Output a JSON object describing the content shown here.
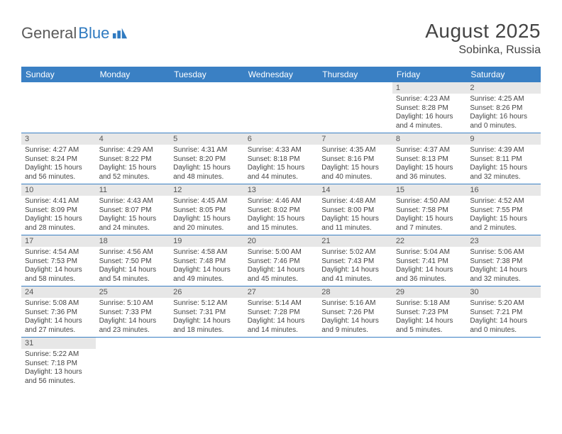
{
  "logo": {
    "part1": "General",
    "part2": "Blue"
  },
  "header": {
    "month_title": "August 2025",
    "location": "Sobinka, Russia"
  },
  "colors": {
    "header_bg": "#3a80c4",
    "header_text": "#ffffff",
    "daynum_bg": "#e7e7e7",
    "row_divider": "#3a80c4",
    "body_text": "#444444",
    "logo_gray": "#5a5a5a",
    "logo_blue": "#2f7ac0",
    "page_bg": "#ffffff"
  },
  "fonts": {
    "month_title_size": 28,
    "location_size": 16,
    "weekday_header_size": 12,
    "daynum_size": 11,
    "cell_body_size": 10
  },
  "type": "calendar",
  "weekdays": [
    "Sunday",
    "Monday",
    "Tuesday",
    "Wednesday",
    "Thursday",
    "Friday",
    "Saturday"
  ],
  "weeks": [
    [
      null,
      null,
      null,
      null,
      null,
      {
        "n": "1",
        "sr": "Sunrise: 4:23 AM",
        "ss": "Sunset: 8:28 PM",
        "dl1": "Daylight: 16 hours",
        "dl2": "and 4 minutes."
      },
      {
        "n": "2",
        "sr": "Sunrise: 4:25 AM",
        "ss": "Sunset: 8:26 PM",
        "dl1": "Daylight: 16 hours",
        "dl2": "and 0 minutes."
      }
    ],
    [
      {
        "n": "3",
        "sr": "Sunrise: 4:27 AM",
        "ss": "Sunset: 8:24 PM",
        "dl1": "Daylight: 15 hours",
        "dl2": "and 56 minutes."
      },
      {
        "n": "4",
        "sr": "Sunrise: 4:29 AM",
        "ss": "Sunset: 8:22 PM",
        "dl1": "Daylight: 15 hours",
        "dl2": "and 52 minutes."
      },
      {
        "n": "5",
        "sr": "Sunrise: 4:31 AM",
        "ss": "Sunset: 8:20 PM",
        "dl1": "Daylight: 15 hours",
        "dl2": "and 48 minutes."
      },
      {
        "n": "6",
        "sr": "Sunrise: 4:33 AM",
        "ss": "Sunset: 8:18 PM",
        "dl1": "Daylight: 15 hours",
        "dl2": "and 44 minutes."
      },
      {
        "n": "7",
        "sr": "Sunrise: 4:35 AM",
        "ss": "Sunset: 8:16 PM",
        "dl1": "Daylight: 15 hours",
        "dl2": "and 40 minutes."
      },
      {
        "n": "8",
        "sr": "Sunrise: 4:37 AM",
        "ss": "Sunset: 8:13 PM",
        "dl1": "Daylight: 15 hours",
        "dl2": "and 36 minutes."
      },
      {
        "n": "9",
        "sr": "Sunrise: 4:39 AM",
        "ss": "Sunset: 8:11 PM",
        "dl1": "Daylight: 15 hours",
        "dl2": "and 32 minutes."
      }
    ],
    [
      {
        "n": "10",
        "sr": "Sunrise: 4:41 AM",
        "ss": "Sunset: 8:09 PM",
        "dl1": "Daylight: 15 hours",
        "dl2": "and 28 minutes."
      },
      {
        "n": "11",
        "sr": "Sunrise: 4:43 AM",
        "ss": "Sunset: 8:07 PM",
        "dl1": "Daylight: 15 hours",
        "dl2": "and 24 minutes."
      },
      {
        "n": "12",
        "sr": "Sunrise: 4:45 AM",
        "ss": "Sunset: 8:05 PM",
        "dl1": "Daylight: 15 hours",
        "dl2": "and 20 minutes."
      },
      {
        "n": "13",
        "sr": "Sunrise: 4:46 AM",
        "ss": "Sunset: 8:02 PM",
        "dl1": "Daylight: 15 hours",
        "dl2": "and 15 minutes."
      },
      {
        "n": "14",
        "sr": "Sunrise: 4:48 AM",
        "ss": "Sunset: 8:00 PM",
        "dl1": "Daylight: 15 hours",
        "dl2": "and 11 minutes."
      },
      {
        "n": "15",
        "sr": "Sunrise: 4:50 AM",
        "ss": "Sunset: 7:58 PM",
        "dl1": "Daylight: 15 hours",
        "dl2": "and 7 minutes."
      },
      {
        "n": "16",
        "sr": "Sunrise: 4:52 AM",
        "ss": "Sunset: 7:55 PM",
        "dl1": "Daylight: 15 hours",
        "dl2": "and 2 minutes."
      }
    ],
    [
      {
        "n": "17",
        "sr": "Sunrise: 4:54 AM",
        "ss": "Sunset: 7:53 PM",
        "dl1": "Daylight: 14 hours",
        "dl2": "and 58 minutes."
      },
      {
        "n": "18",
        "sr": "Sunrise: 4:56 AM",
        "ss": "Sunset: 7:50 PM",
        "dl1": "Daylight: 14 hours",
        "dl2": "and 54 minutes."
      },
      {
        "n": "19",
        "sr": "Sunrise: 4:58 AM",
        "ss": "Sunset: 7:48 PM",
        "dl1": "Daylight: 14 hours",
        "dl2": "and 49 minutes."
      },
      {
        "n": "20",
        "sr": "Sunrise: 5:00 AM",
        "ss": "Sunset: 7:46 PM",
        "dl1": "Daylight: 14 hours",
        "dl2": "and 45 minutes."
      },
      {
        "n": "21",
        "sr": "Sunrise: 5:02 AM",
        "ss": "Sunset: 7:43 PM",
        "dl1": "Daylight: 14 hours",
        "dl2": "and 41 minutes."
      },
      {
        "n": "22",
        "sr": "Sunrise: 5:04 AM",
        "ss": "Sunset: 7:41 PM",
        "dl1": "Daylight: 14 hours",
        "dl2": "and 36 minutes."
      },
      {
        "n": "23",
        "sr": "Sunrise: 5:06 AM",
        "ss": "Sunset: 7:38 PM",
        "dl1": "Daylight: 14 hours",
        "dl2": "and 32 minutes."
      }
    ],
    [
      {
        "n": "24",
        "sr": "Sunrise: 5:08 AM",
        "ss": "Sunset: 7:36 PM",
        "dl1": "Daylight: 14 hours",
        "dl2": "and 27 minutes."
      },
      {
        "n": "25",
        "sr": "Sunrise: 5:10 AM",
        "ss": "Sunset: 7:33 PM",
        "dl1": "Daylight: 14 hours",
        "dl2": "and 23 minutes."
      },
      {
        "n": "26",
        "sr": "Sunrise: 5:12 AM",
        "ss": "Sunset: 7:31 PM",
        "dl1": "Daylight: 14 hours",
        "dl2": "and 18 minutes."
      },
      {
        "n": "27",
        "sr": "Sunrise: 5:14 AM",
        "ss": "Sunset: 7:28 PM",
        "dl1": "Daylight: 14 hours",
        "dl2": "and 14 minutes."
      },
      {
        "n": "28",
        "sr": "Sunrise: 5:16 AM",
        "ss": "Sunset: 7:26 PM",
        "dl1": "Daylight: 14 hours",
        "dl2": "and 9 minutes."
      },
      {
        "n": "29",
        "sr": "Sunrise: 5:18 AM",
        "ss": "Sunset: 7:23 PM",
        "dl1": "Daylight: 14 hours",
        "dl2": "and 5 minutes."
      },
      {
        "n": "30",
        "sr": "Sunrise: 5:20 AM",
        "ss": "Sunset: 7:21 PM",
        "dl1": "Daylight: 14 hours",
        "dl2": "and 0 minutes."
      }
    ],
    [
      {
        "n": "31",
        "sr": "Sunrise: 5:22 AM",
        "ss": "Sunset: 7:18 PM",
        "dl1": "Daylight: 13 hours",
        "dl2": "and 56 minutes."
      },
      null,
      null,
      null,
      null,
      null,
      null
    ]
  ]
}
